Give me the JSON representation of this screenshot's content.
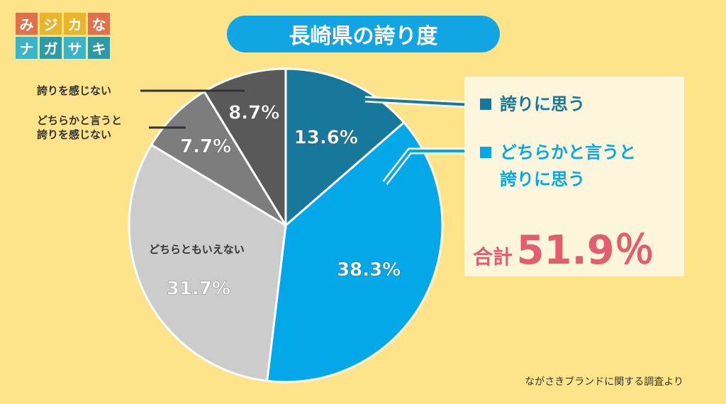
{
  "logo": {
    "row1": [
      "み",
      "ジ",
      "カ",
      "な"
    ],
    "row2": [
      "ナ",
      "ガ",
      "サ",
      "キ"
    ],
    "colors1": [
      "#e0714a",
      "#e8b52c",
      "#e8b52c",
      "#e0714a"
    ],
    "colors2": [
      "#3bb4c8",
      "#2e9aa6",
      "#3bb4c8",
      "#2e9aa6"
    ]
  },
  "title": "長崎県の誇り度",
  "chart_data": {
    "type": "pie",
    "title": "長崎県の誇り度",
    "categories": [
      "誇りに思う",
      "どちらかと言うと誇りに思う",
      "どちらともいえない",
      "どちらかと言うと誇りを感じない",
      "誇りを感じない"
    ],
    "values": [
      13.6,
      38.3,
      31.7,
      7.7,
      8.7
    ],
    "value_labels": [
      "13.6%",
      "38.3%",
      "31.7%",
      "7.7%",
      "8.7%"
    ],
    "colors": [
      "#18789c",
      "#03a8e8",
      "#cccccc",
      "#7d7d7d",
      "#595959"
    ]
  },
  "legend": {
    "item1": "誇りに思う",
    "item2_line1": "どちらかと言うと",
    "item2_line2": "誇りに思う",
    "total_label": "合計",
    "total_value": "51.9％"
  },
  "labels": {
    "neutral": "どちらともいえない",
    "not_proud": "誇りを感じない",
    "somewhat_not_1": "どちらかと言うと",
    "somewhat_not_2": "誇りを感じない"
  },
  "source": "ながさきブランドに関する調査より"
}
